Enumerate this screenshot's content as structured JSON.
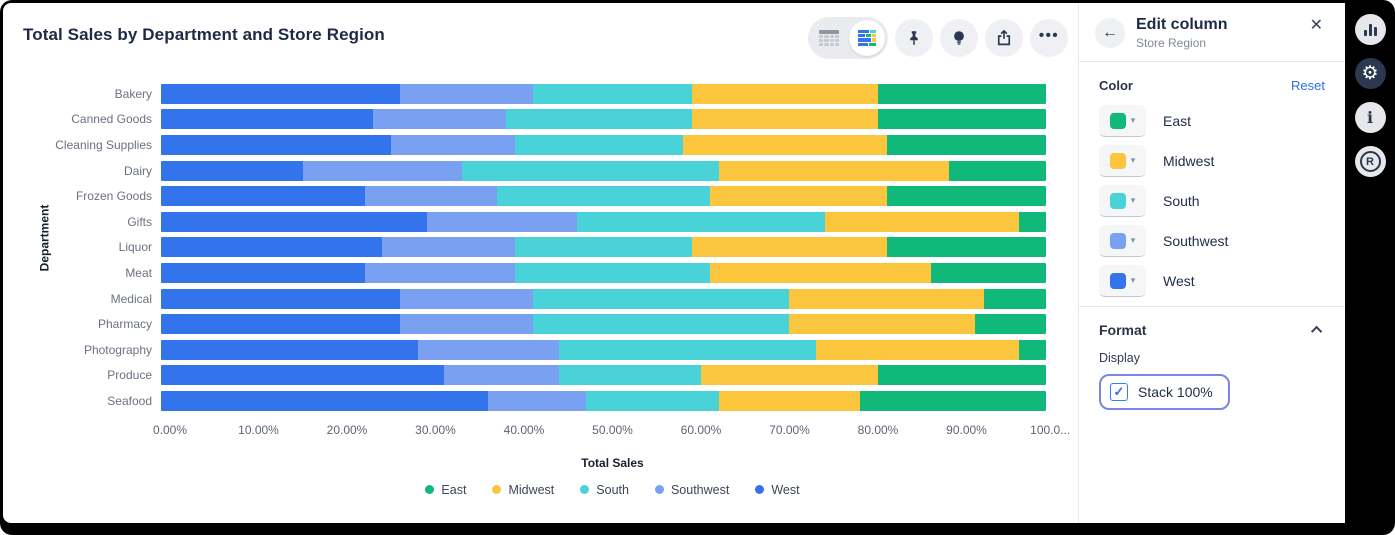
{
  "accent_colors": {
    "link_blue": "#2a6fe8",
    "focus_ring": "#7b85e5",
    "glyph_navy": "#2b3850"
  },
  "chart_card": {
    "title": "Total Sales by Department and Store Region",
    "toolbar": {
      "table_toggle": "table-view",
      "chart_toggle": "chart-view",
      "pin": "pin",
      "lightbulb": "insights",
      "share": "share",
      "more": "•••"
    }
  },
  "chart_data": {
    "type": "bar",
    "orientation": "horizontal",
    "stacking": "100%",
    "title": "Total Sales by Department and Store Region",
    "xlabel": "Total Sales",
    "ylabel": "Department",
    "xlim": [
      0,
      100
    ],
    "x_ticks": [
      "0.00%",
      "10.00%",
      "20.00%",
      "30.00%",
      "40.00%",
      "50.00%",
      "60.00%",
      "70.00%",
      "80.00%",
      "90.00%",
      "100.0..."
    ],
    "categories": [
      "Bakery",
      "Canned Goods",
      "Cleaning Supplies",
      "Dairy",
      "Frozen Goods",
      "Gifts",
      "Liquor",
      "Meat",
      "Medical",
      "Pharmacy",
      "Photography",
      "Produce",
      "Seafood"
    ],
    "series": [
      {
        "name": "West",
        "color": "#3374ec",
        "values": [
          27,
          24,
          26,
          16,
          23,
          30,
          25,
          23,
          27,
          27,
          29,
          32,
          37
        ]
      },
      {
        "name": "Southwest",
        "color": "#7aa0f2",
        "values": [
          15,
          15,
          14,
          18,
          15,
          17,
          15,
          17,
          15,
          15,
          16,
          13,
          11
        ]
      },
      {
        "name": "South",
        "color": "#4ad2d9",
        "values": [
          18,
          21,
          19,
          29,
          24,
          28,
          20,
          22,
          29,
          29,
          29,
          16,
          15
        ]
      },
      {
        "name": "Midwest",
        "color": "#fbc53e",
        "values": [
          21,
          21,
          23,
          26,
          20,
          22,
          22,
          25,
          22,
          21,
          23,
          20,
          16
        ]
      },
      {
        "name": "East",
        "color": "#10b87a",
        "values": [
          19,
          19,
          18,
          11,
          18,
          3,
          18,
          13,
          7,
          8,
          3,
          19,
          21
        ]
      }
    ],
    "legend": [
      {
        "label": "East",
        "color": "#10b87a"
      },
      {
        "label": "Midwest",
        "color": "#fbc53e"
      },
      {
        "label": "South",
        "color": "#4ad2d9"
      },
      {
        "label": "Southwest",
        "color": "#7aa0f2"
      },
      {
        "label": "West",
        "color": "#3374ec"
      }
    ],
    "legend_position": "bottom",
    "grid": false
  },
  "edit_panel": {
    "title": "Edit column",
    "subtitle": "Store Region",
    "color_section": {
      "label": "Color",
      "reset_label": "Reset",
      "items": [
        {
          "name": "East",
          "color": "#10b87a"
        },
        {
          "name": "Midwest",
          "color": "#fbc53e"
        },
        {
          "name": "South",
          "color": "#4ad2d9"
        },
        {
          "name": "Southwest",
          "color": "#7aa0f2"
        },
        {
          "name": "West",
          "color": "#3374ec"
        }
      ]
    },
    "format_section": {
      "label": "Format",
      "display_label": "Display",
      "stack_label": "Stack 100%",
      "stack_checked": true,
      "check_glyph": "✓"
    }
  },
  "right_rail": {
    "icons": [
      "bar-chart",
      "gear",
      "info",
      "r-logo"
    ]
  }
}
